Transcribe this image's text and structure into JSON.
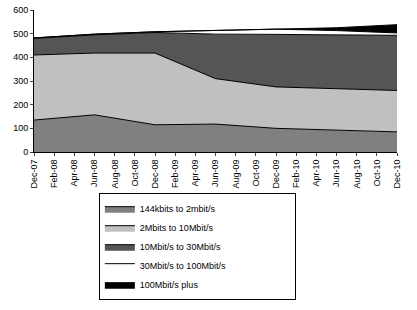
{
  "chart_data": {
    "type": "area",
    "stacked": true,
    "categories": [
      "Dec-07",
      "Feb-08",
      "Apr-08",
      "Jun-08",
      "Aug-08",
      "Oct-08",
      "Dec-08",
      "Feb-09",
      "Apr-09",
      "Jun-09",
      "Aug-09",
      "Oct-09",
      "Dec-09",
      "Feb-10",
      "Apr-10",
      "Jun-10",
      "Aug-10",
      "Oct-10",
      "Dec-10"
    ],
    "series": [
      {
        "name": "144kbits to 2mbit/s",
        "color": "#808080",
        "values": [
          135,
          null,
          null,
          157,
          null,
          null,
          115,
          null,
          null,
          118,
          null,
          null,
          100,
          null,
          null,
          92,
          null,
          null,
          85
        ]
      },
      {
        "name": "2Mbits to 10Mbit/s",
        "color": "#c0c0c0",
        "values": [
          275,
          null,
          null,
          261,
          null,
          null,
          303,
          null,
          null,
          192,
          null,
          null,
          175,
          null,
          null,
          176,
          null,
          null,
          175
        ]
      },
      {
        "name": "10Mbit/s to 30Mbit/s",
        "color": "#555555",
        "values": [
          70,
          null,
          null,
          77,
          null,
          null,
          87,
          null,
          null,
          188,
          null,
          null,
          222,
          null,
          null,
          227,
          null,
          null,
          233
        ]
      },
      {
        "name": "30Mbit/s to 100Mbit/s",
        "color": "#ffffff",
        "values": [
          2,
          null,
          null,
          3,
          null,
          null,
          3,
          null,
          null,
          15,
          null,
          null,
          22,
          null,
          null,
          18,
          null,
          null,
          10
        ]
      },
      {
        "name": "100Mbit/s plus",
        "color": "#000000",
        "values": [
          0,
          null,
          null,
          0,
          null,
          null,
          0,
          null,
          null,
          0,
          null,
          null,
          0,
          null,
          null,
          12,
          null,
          null,
          35
        ]
      }
    ],
    "ylim": [
      0,
      600
    ],
    "yticks": [
      0,
      100,
      200,
      300,
      400,
      500,
      600
    ],
    "grid": false,
    "legend": "bottom"
  }
}
